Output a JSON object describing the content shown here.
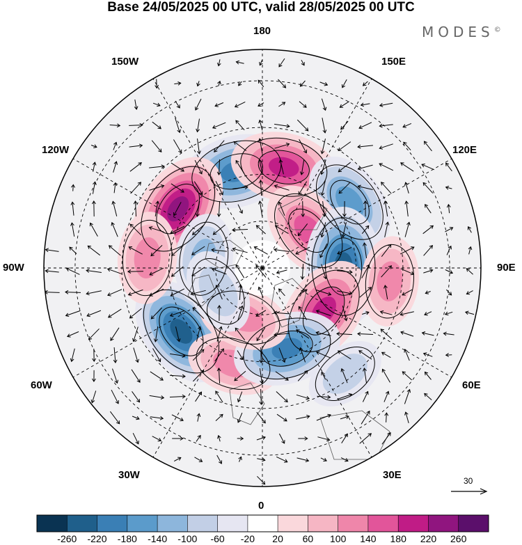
{
  "title": "Base 24/05/2025 00 UTC, valid 28/05/2025 00 UTC",
  "brand": "MODES",
  "brand_mark": "©",
  "lon_labels": {
    "top": "180",
    "bottom": "0",
    "left": "90W",
    "right": "90E",
    "upper_left_1": "150W",
    "upper_left_2": "120W",
    "upper_right_1": "150E",
    "upper_right_2": "120E",
    "lower_left_1": "60W",
    "lower_left_2": "30W",
    "lower_right_1": "60E",
    "lower_right_2": "30E"
  },
  "reference_vector": {
    "label": "30"
  },
  "colorbar": {
    "labels": [
      "-260",
      "-220",
      "-180",
      "-140",
      "-100",
      "-60",
      "-20",
      "20",
      "60",
      "100",
      "140",
      "180",
      "220",
      "260"
    ],
    "colors": [
      "#0a3352",
      "#1f5f8b",
      "#3a7fb5",
      "#5b9bcb",
      "#8db6dc",
      "#c2cfe6",
      "#e6e6f2",
      "#ffffff",
      "#fad8dc",
      "#f6b6c4",
      "#ef86aa",
      "#e2559a",
      "#c01c86",
      "#90157f",
      "#5b0f6b"
    ]
  },
  "anomalies": [
    {
      "lat": 58,
      "lon": -165,
      "value": -200
    },
    {
      "lat": 57,
      "lon": 168,
      "value": 180
    },
    {
      "lat": 55,
      "lon": 127,
      "value": -160
    },
    {
      "lat": 57,
      "lon": -125,
      "value": 220
    },
    {
      "lat": 71,
      "lon": 129,
      "value": 160
    },
    {
      "lat": 64,
      "lon": 91,
      "value": -240
    },
    {
      "lat": 66,
      "lon": 55,
      "value": 200
    },
    {
      "lat": 57,
      "lon": -52,
      "value": -220
    },
    {
      "lat": 58,
      "lon": -17,
      "value": 110
    },
    {
      "lat": 63,
      "lon": 17,
      "value": -190
    },
    {
      "lat": 73,
      "lon": -21,
      "value": 110
    },
    {
      "lat": 71,
      "lon": -99,
      "value": -100
    },
    {
      "lat": 49,
      "lon": 84,
      "value": 100
    },
    {
      "lat": 53,
      "lon": -95,
      "value": 110
    },
    {
      "lat": 74,
      "lon": -62,
      "value": -80
    },
    {
      "lat": 47,
      "lon": 38,
      "value": -60
    }
  ]
}
